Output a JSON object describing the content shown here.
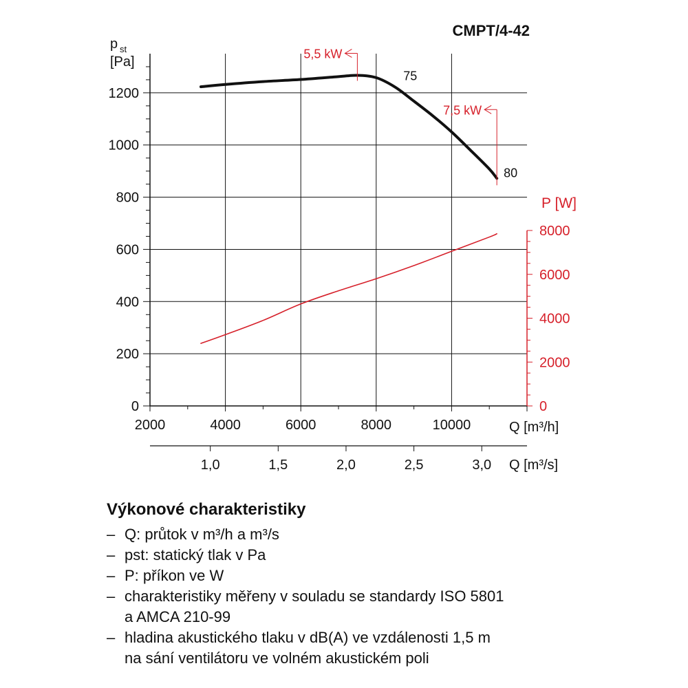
{
  "chart_data": {
    "type": "line",
    "title": "CMPT/4-42",
    "left_axis": {
      "label_main": "p",
      "label_sub": "st",
      "label_unit": "[Pa]",
      "ticks": [
        0,
        200,
        400,
        600,
        800,
        1000,
        1200
      ],
      "range": [
        0,
        1350
      ]
    },
    "right_axis": {
      "label": "P [W]",
      "ticks": [
        0,
        2000,
        4000,
        6000,
        8000
      ],
      "range": [
        0,
        8000
      ],
      "color": "#d6202a"
    },
    "x_axis": {
      "label": "Q [m³/h]",
      "ticks": [
        2000,
        4000,
        6000,
        8000,
        10000
      ],
      "range": [
        2000,
        12000
      ]
    },
    "x2_axis": {
      "label": "Q [m³/s]",
      "ticks": [
        "1,0",
        "1,5",
        "2,0",
        "2,5",
        "3,0"
      ],
      "tick_values": [
        1.0,
        1.5,
        2.0,
        2.5,
        3.0
      ]
    },
    "grid": true,
    "series": [
      {
        "role": "pressure",
        "axis": "left",
        "color": "#111111",
        "x": [
          3350,
          4000,
          5000,
          6000,
          7000,
          7500,
          8000,
          8500,
          9000,
          9500,
          10000,
          10500,
          11000,
          11200
        ],
        "y": [
          1223,
          1232,
          1243,
          1251,
          1262,
          1267,
          1258,
          1222,
          1168,
          1112,
          1050,
          980,
          908,
          872
        ]
      },
      {
        "role": "power",
        "axis": "right",
        "color": "#d6202a",
        "x": [
          3350,
          4000,
          5000,
          6000,
          7000,
          8000,
          9000,
          10000,
          11000,
          11200
        ],
        "y": [
          2850,
          3250,
          3900,
          4650,
          5250,
          5800,
          6400,
          7050,
          7700,
          7850
        ]
      }
    ],
    "annotations": [
      {
        "text": "5,5 kW",
        "x": 7500,
        "y": 1267,
        "color": "#d6202a"
      },
      {
        "text": "7,5 kW",
        "x": 11200,
        "y": 872,
        "color": "#d6202a"
      },
      {
        "text": "75",
        "x": 8500,
        "y": 1222,
        "color": "#111111"
      },
      {
        "text": "80",
        "x": 11200,
        "y": 872,
        "color": "#111111"
      }
    ]
  },
  "legend": {
    "title": "Výkonové charakteristiky",
    "items": [
      "Q: průtok v m³/h a m³/s",
      "pst: statický tlak v Pa",
      "P: příkon ve W",
      "charakteristiky měřeny v souladu se standardy ISO 5801\na AMCA 210-99",
      "hladina akustického tlaku v dB(A) ve vzdálenosti 1,5 m\nna sání ventilátoru ve volném akustickém poli"
    ]
  }
}
